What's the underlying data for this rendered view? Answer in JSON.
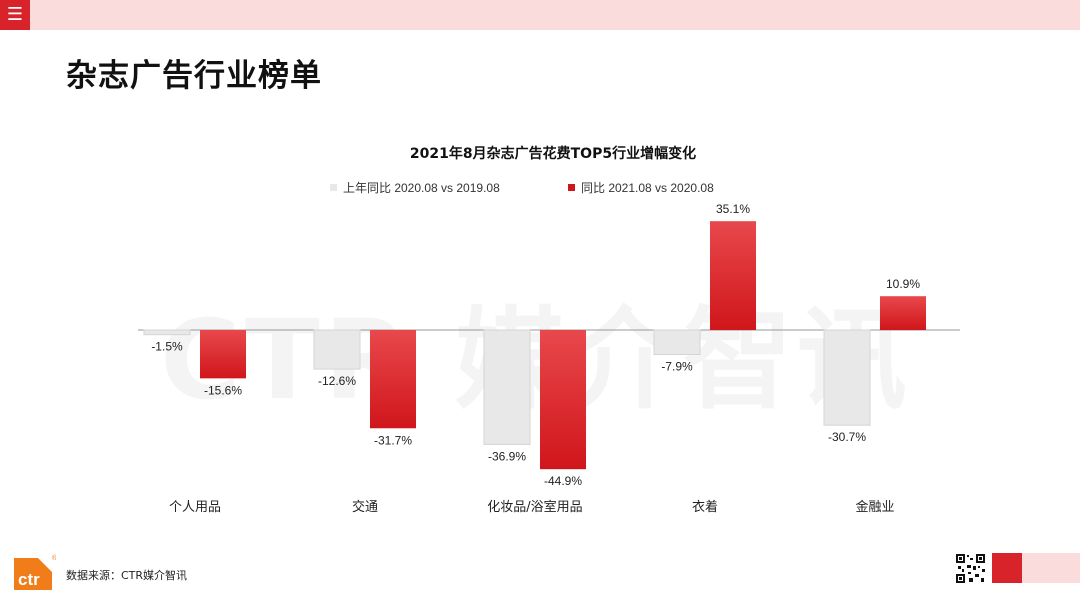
{
  "header": {
    "menu_icon": "menu-icon"
  },
  "page": {
    "title": "杂志广告行业榜单"
  },
  "watermark": "CTR 媒介智讯",
  "footer": {
    "source": "数据来源：CTR媒介智讯",
    "logo_text": "ctr",
    "logo_mark": "®"
  },
  "colors": {
    "accent": "#d9232a",
    "pink": "#fbdcdc",
    "prev": "#e8e8e8",
    "curr": "#d0161b"
  },
  "chart_data": {
    "type": "bar",
    "title": "2021年8月杂志广告花费TOP5行业增幅变化",
    "categories": [
      "个人用品",
      "交通",
      "化妆品/浴室用品",
      "衣着",
      "金融业"
    ],
    "series": [
      {
        "name": "上年同比 2020.08 vs 2019.08",
        "values": [
          -1.5,
          -12.6,
          -36.9,
          -7.9,
          -30.7
        ],
        "labels": [
          "-1.5%",
          "-12.6%",
          "-36.9%",
          "-7.9%",
          "-30.7%"
        ]
      },
      {
        "name": "同比 2021.08 vs 2020.08",
        "values": [
          -15.6,
          -31.7,
          -44.9,
          35.1,
          10.9
        ],
        "labels": [
          "-15.6%",
          "-31.7%",
          "-44.9%",
          "35.1%",
          "10.9%"
        ]
      }
    ],
    "ylim": [
      -50,
      40
    ],
    "grid": false,
    "legend": "top"
  }
}
